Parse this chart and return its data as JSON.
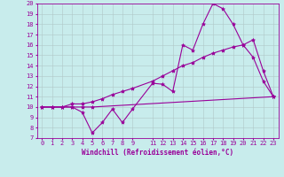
{
  "xlabel": "Windchill (Refroidissement éolien,°C)",
  "bg_color": "#c8ecec",
  "line_color": "#990099",
  "xmin": -0.5,
  "xmax": 23.5,
  "ymin": 7,
  "ymax": 20,
  "series1_x": [
    0,
    1,
    2,
    3,
    4,
    5,
    6,
    7,
    8,
    9,
    11,
    12,
    13,
    14,
    15,
    16,
    17,
    18,
    19,
    20,
    21,
    22,
    23
  ],
  "series1_y": [
    10,
    10,
    10,
    10,
    9.5,
    7.5,
    8.5,
    9.8,
    8.5,
    9.8,
    12.3,
    12.2,
    11.5,
    16,
    15.5,
    18,
    20,
    19.5,
    18,
    16,
    14.8,
    12.5,
    11
  ],
  "series2_x": [
    0,
    1,
    2,
    3,
    4,
    5,
    23
  ],
  "series2_y": [
    10,
    10,
    10,
    10,
    10,
    10,
    11
  ],
  "series3_x": [
    0,
    1,
    2,
    3,
    4,
    5,
    6,
    7,
    8,
    9,
    11,
    12,
    13,
    14,
    15,
    16,
    17,
    18,
    19,
    20,
    21,
    22,
    23
  ],
  "series3_y": [
    10,
    10,
    10,
    10.3,
    10.3,
    10.5,
    10.8,
    11.2,
    11.5,
    11.8,
    12.5,
    13.0,
    13.5,
    14.0,
    14.3,
    14.8,
    15.2,
    15.5,
    15.8,
    16.0,
    16.5,
    13.5,
    11
  ],
  "grid_color": "#b0c8c8",
  "marker": "*",
  "markersize": 3,
  "linewidth": 0.8,
  "xticks": [
    0,
    1,
    2,
    3,
    4,
    5,
    6,
    7,
    8,
    9,
    11,
    12,
    13,
    14,
    15,
    16,
    17,
    18,
    19,
    20,
    21,
    22,
    23
  ],
  "yticks": [
    7,
    8,
    9,
    10,
    11,
    12,
    13,
    14,
    15,
    16,
    17,
    18,
    19,
    20
  ],
  "tick_fontsize": 5,
  "xlabel_fontsize": 5.5
}
